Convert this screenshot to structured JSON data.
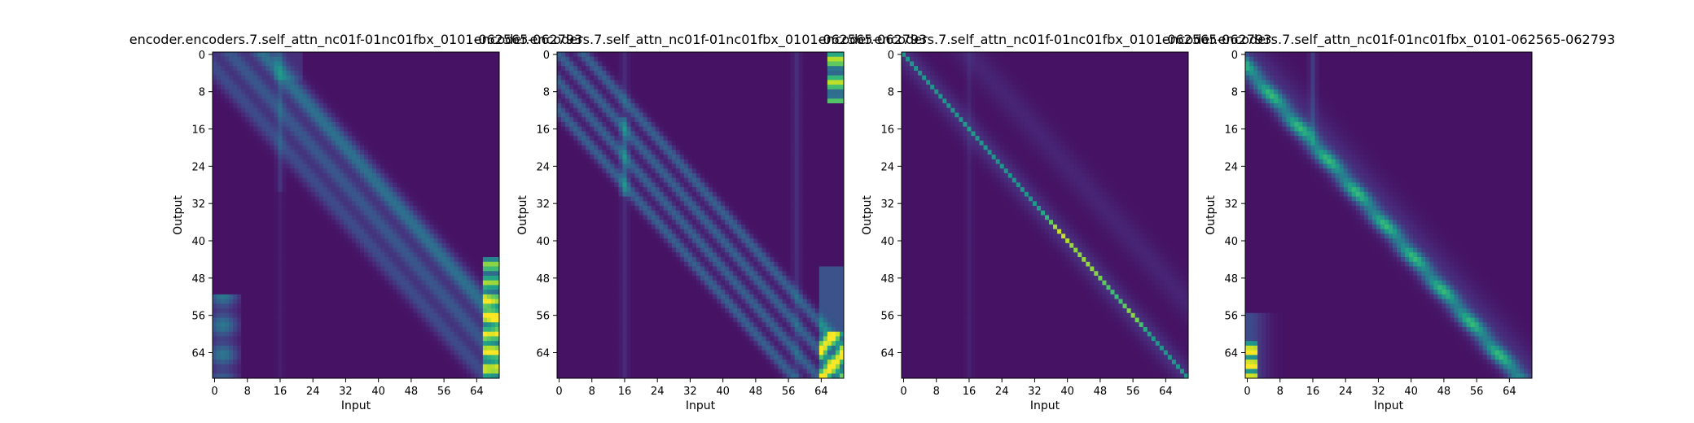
{
  "figure": {
    "background": "#ffffff"
  },
  "chart_data": [
    {
      "type": "heatmap",
      "title": "encoder.encoders.7.self_attn_nc01f-01nc01fbx_0101-062565-062793",
      "xlabel": "Input",
      "ylabel": "Output",
      "xticks": [
        "0",
        "8",
        "16",
        "24",
        "32",
        "40",
        "48",
        "56",
        "64"
      ],
      "yticks": [
        "0",
        "8",
        "16",
        "24",
        "32",
        "40",
        "48",
        "56",
        "64"
      ],
      "xlim": [
        0,
        69
      ],
      "ylim": [
        69,
        0
      ],
      "colormap": "viridis",
      "pattern": "head1"
    },
    {
      "type": "heatmap",
      "title": "encoder.encoders.7.self_attn_nc01f-01nc01fbx_0101-062565-062793",
      "xlabel": "Input",
      "ylabel": "Output",
      "xticks": [
        "0",
        "8",
        "16",
        "24",
        "32",
        "40",
        "48",
        "56",
        "64"
      ],
      "yticks": [
        "0",
        "8",
        "16",
        "24",
        "32",
        "40",
        "48",
        "56",
        "64"
      ],
      "xlim": [
        0,
        69
      ],
      "ylim": [
        69,
        0
      ],
      "colormap": "viridis",
      "pattern": "head2"
    },
    {
      "type": "heatmap",
      "title": "encoder.encoders.7.self_attn_nc01f-01nc01fbx_0101-062565-062793",
      "xlabel": "Input",
      "ylabel": "Output",
      "xticks": [
        "0",
        "8",
        "16",
        "24",
        "32",
        "40",
        "48",
        "56",
        "64"
      ],
      "yticks": [
        "0",
        "8",
        "16",
        "24",
        "32",
        "40",
        "48",
        "56",
        "64"
      ],
      "xlim": [
        0,
        69
      ],
      "ylim": [
        69,
        0
      ],
      "colormap": "viridis",
      "pattern": "head3"
    },
    {
      "type": "heatmap",
      "title": "encoder.encoders.7.self_attn_nc01f-01nc01fbx_0101-062565-062793",
      "xlabel": "Input",
      "ylabel": "Output",
      "xticks": [
        "0",
        "8",
        "16",
        "24",
        "32",
        "40",
        "48",
        "56",
        "64"
      ],
      "yticks": [
        "0",
        "8",
        "16",
        "24",
        "32",
        "40",
        "48",
        "56",
        "64"
      ],
      "xlim": [
        0,
        69
      ],
      "ylim": [
        69,
        0
      ],
      "colormap": "viridis",
      "pattern": "head4"
    }
  ]
}
